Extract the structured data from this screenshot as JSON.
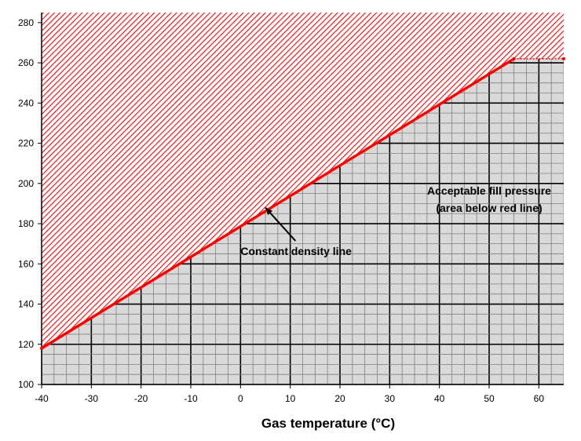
{
  "chart_data": {
    "type": "area",
    "xlabel": "Gas temperature (°C)",
    "xlim": [
      -40,
      65
    ],
    "ylim": [
      100,
      285
    ],
    "x_ticks": [
      -40,
      -30,
      -20,
      -10,
      0,
      10,
      20,
      30,
      40,
      50,
      60
    ],
    "y_ticks": [
      100,
      120,
      140,
      160,
      180,
      200,
      220,
      240,
      260,
      280
    ],
    "grid": true,
    "series": [
      {
        "x": [
          -40,
          55,
          65
        ],
        "y": [
          118,
          262,
          262
        ],
        "color": "#ff0000"
      }
    ],
    "annotations": [
      {
        "text": "Constant density line",
        "x": 0,
        "y": 166,
        "arrow_to": {
          "x": 5,
          "y": 188
        }
      },
      {
        "lines": [
          "Acceptable fill pressure",
          "(area below red line)"
        ],
        "x": 50,
        "y": 196
      }
    ],
    "colors": {
      "line": "#ff0000",
      "hatch": "#ff0000",
      "acceptable_fill": "#d9d9d9",
      "grid_minor": "#7f7f7f",
      "grid_major": "#000000"
    }
  }
}
